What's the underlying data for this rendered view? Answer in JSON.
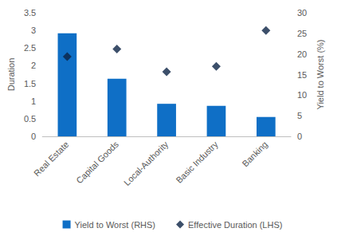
{
  "chart_data": {
    "type": "bar",
    "categories": [
      "Real Estate",
      "Capital Goods",
      "Local-Authority",
      "Basic Industry",
      "Banking"
    ],
    "series": [
      {
        "name": "Yield to Worst (RHS)",
        "type": "bar",
        "axis": "y2",
        "color": "#0f6fc6",
        "values": [
          25,
          14,
          7.9,
          7.4,
          4.7
        ]
      },
      {
        "name": "Effective Duration (LHS)",
        "type": "scatter",
        "marker": "diamond",
        "color": "#0b2345",
        "values": [
          2.26,
          2.47,
          1.83,
          1.98,
          3.0
        ]
      }
    ],
    "y_label": "Duration",
    "y2_label": "Yield to Worst (%)",
    "ylim": [
      0,
      3.5
    ],
    "yticks": [
      0,
      0.5,
      1,
      1.5,
      2,
      2.5,
      3,
      3.5
    ],
    "y2lim": [
      0,
      30
    ],
    "y2ticks": [
      0,
      5,
      10,
      15,
      20,
      25,
      30
    ],
    "grid": false,
    "legend": "bottom"
  }
}
